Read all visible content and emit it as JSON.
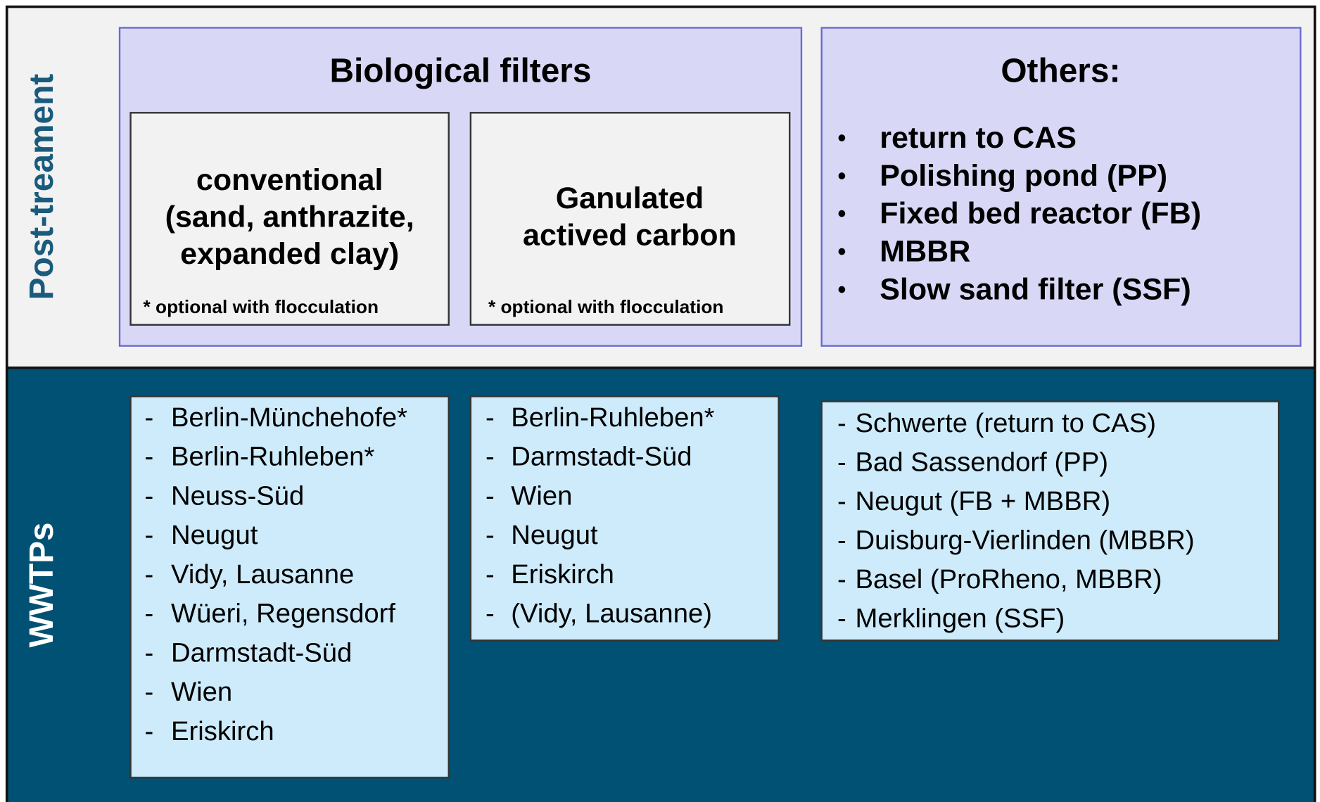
{
  "sections": [
    {
      "label": "Post-treament"
    },
    {
      "label": "WWTPs"
    }
  ],
  "biological_filters": {
    "title": "Biological filters",
    "boxes": [
      {
        "lines": [
          "conventional",
          "(sand, anthrazite,",
          "expanded clay)"
        ],
        "note": "* optional with flocculation"
      },
      {
        "lines": [
          "Ganulated",
          "actived carbon"
        ],
        "note": "* optional with flocculation"
      }
    ]
  },
  "others": {
    "title": "Others:",
    "items": [
      "return to CAS",
      "Polishing pond (PP)",
      "Fixed bed reactor (FB)",
      "MBBR",
      "Slow sand filter (SSF)"
    ]
  },
  "wwtp_lists": [
    [
      "Berlin-Münchehofe*",
      "Berlin-Ruhleben*",
      "Neuss-Süd",
      "Neugut",
      "Vidy, Lausanne",
      "Wüeri, Regensdorf",
      "Darmstadt-Süd",
      "Wien",
      "Eriskirch"
    ],
    [
      "Berlin-Ruhleben*",
      "Darmstadt-Süd",
      "Wien",
      "Neugut",
      "Eriskirch",
      "(Vidy, Lausanne)"
    ],
    [
      "Schwerte (return to CAS)",
      "Bad Sassendorf (PP)",
      "Neugut (FB + MBBR)",
      "Duisburg-Vierlinden (MBBR)",
      "Basel (ProRheno, MBBR)",
      "Merklingen (SSF)"
    ]
  ]
}
